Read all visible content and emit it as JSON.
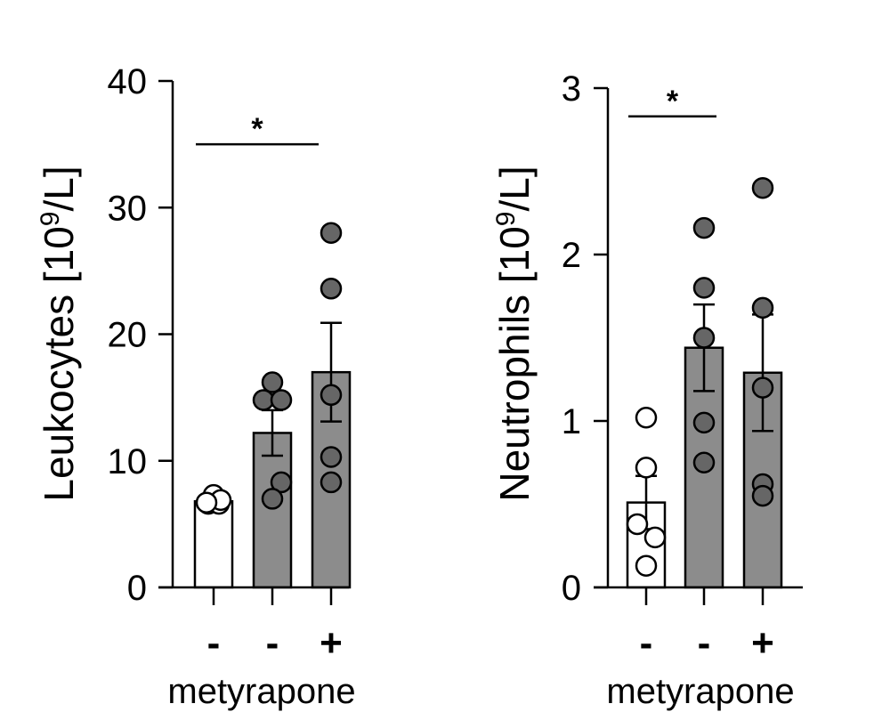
{
  "chart_data": [
    {
      "type": "bar",
      "ylabel_main": "Leukocytes [10",
      "ylabel_sup": "9",
      "ylabel_tail": "/L]",
      "ylim": [
        0,
        40
      ],
      "yticks": [
        0,
        10,
        20,
        30,
        40
      ],
      "xlabel": "metyrapone",
      "categories": [
        "-",
        "-",
        "+"
      ],
      "fills": [
        "#ffffff",
        "#8c8c8c",
        "#8c8c8c"
      ],
      "point_fills": [
        "#ffffff",
        "#666666",
        "#666666"
      ],
      "values": [
        6.8,
        12.2,
        17.0
      ],
      "sem": [
        0.3,
        1.8,
        3.9
      ],
      "points": [
        [
          7.3,
          6.6,
          6.6,
          6.9,
          6.7
        ],
        [
          16.2,
          14.8,
          14.8,
          8.3,
          7.0
        ],
        [
          28.0,
          23.6,
          15.2,
          10.3,
          8.3
        ]
      ],
      "significance": {
        "from": 0,
        "to": 2,
        "label": "*",
        "y": 35
      }
    },
    {
      "type": "bar",
      "ylabel_main": "Neutrophils [10",
      "ylabel_sup": "9",
      "ylabel_tail": "/L]",
      "ylim": [
        0,
        3
      ],
      "yticks": [
        0,
        1,
        2,
        3
      ],
      "xlabel": "metyrapone",
      "categories": [
        "-",
        "-",
        "+"
      ],
      "fills": [
        "#ffffff",
        "#8c8c8c",
        "#8c8c8c"
      ],
      "point_fills": [
        "#ffffff",
        "#666666",
        "#666666"
      ],
      "values": [
        0.51,
        1.44,
        1.29
      ],
      "sem": [
        0.16,
        0.26,
        0.35
      ],
      "points": [
        [
          1.02,
          0.72,
          0.38,
          0.3,
          0.13
        ],
        [
          2.16,
          1.8,
          1.5,
          0.99,
          0.75
        ],
        [
          2.4,
          1.68,
          1.2,
          0.62,
          0.55
        ]
      ],
      "significance": {
        "from": 0,
        "to": 1,
        "label": "*",
        "y": 2.83
      }
    }
  ]
}
